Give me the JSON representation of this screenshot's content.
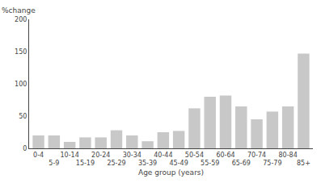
{
  "chart_data": {
    "type": "bar",
    "categories": [
      "0-4",
      "5-9",
      "10-14",
      "15-19",
      "20-24",
      "25-29",
      "30-34",
      "35-39",
      "40-44",
      "45-49",
      "50-54",
      "55-59",
      "60-64",
      "65-69",
      "70-74",
      "75-79",
      "80-84",
      "85+"
    ],
    "values": [
      20,
      20,
      10,
      17,
      17,
      28,
      20,
      11,
      25,
      27,
      62,
      80,
      82,
      65,
      45,
      57,
      65,
      147
    ],
    "color": "#c8c8c8",
    "xlabel": "Age group (years)",
    "ylabel": "%change",
    "ylim": [
      0,
      200
    ],
    "yticks": [
      0,
      50,
      100,
      150,
      200
    ],
    "grid": false
  }
}
